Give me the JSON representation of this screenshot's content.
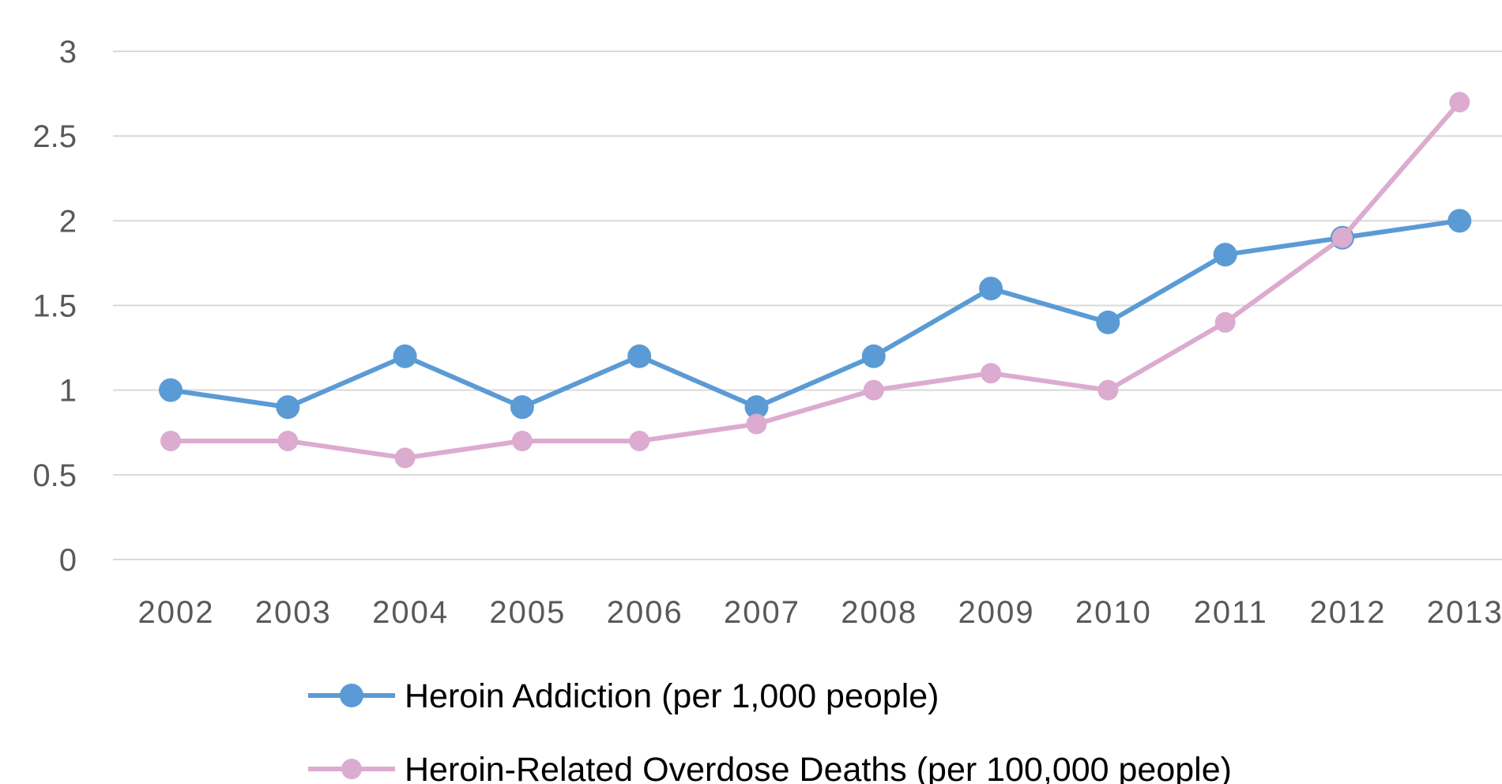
{
  "chart_data": {
    "type": "line",
    "title": "",
    "xlabel": "",
    "ylabel": "",
    "categories": [
      "2002",
      "2003",
      "2004",
      "2005",
      "2006",
      "2007",
      "2008",
      "2009",
      "2010",
      "2011",
      "2012",
      "2013"
    ],
    "ylim": [
      0,
      3
    ],
    "yticks": [
      "0",
      "0.5",
      "1",
      "1.5",
      "2",
      "2.5",
      "3"
    ],
    "grid": true,
    "legend_position": "bottom",
    "series": [
      {
        "name": "Heroin Addiction (per 1,000 people)",
        "color": "#5b9bd5",
        "values": [
          1.0,
          0.9,
          1.2,
          0.9,
          1.2,
          0.9,
          1.2,
          1.6,
          1.4,
          1.8,
          1.9,
          2.0
        ]
      },
      {
        "name": "Heroin-Related Overdose Deaths (per 100,000 people)",
        "color": "#dcabd0",
        "values": [
          0.7,
          0.7,
          0.6,
          0.7,
          0.7,
          0.8,
          1.0,
          1.1,
          1.0,
          1.4,
          1.9,
          2.7
        ]
      }
    ]
  }
}
